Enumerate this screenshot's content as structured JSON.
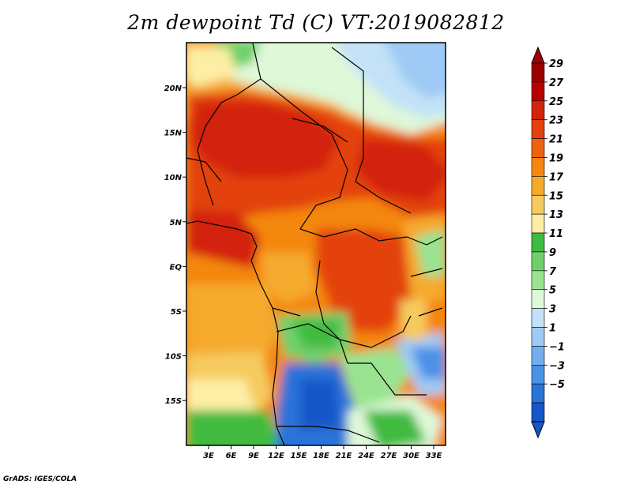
{
  "title": "2m dewpoint Td (C) VT:2019082812",
  "credit": "GrADS: IGES/COLA",
  "map": {
    "lon_range": [
      0,
      35
    ],
    "lat_range": [
      -20,
      24
    ],
    "lon_ticks": [
      "3E",
      "6E",
      "9E",
      "12E",
      "15E",
      "18E",
      "21E",
      "24E",
      "27E",
      "30E",
      "33E"
    ],
    "lat_ticks": [
      "20N",
      "15N",
      "10N",
      "5N",
      "EQ",
      "5S",
      "10S",
      "15S"
    ]
  },
  "colorbar": {
    "labels": [
      "29",
      "27",
      "25",
      "23",
      "21",
      "19",
      "17",
      "15",
      "13",
      "11",
      "9",
      "7",
      "5",
      "3",
      "1",
      "−1",
      "−3",
      "−5"
    ],
    "colors": [
      "#9b0000",
      "#b80000",
      "#d3230b",
      "#e3420d",
      "#ee6310",
      "#f4870f",
      "#f5aa2d",
      "#f5cb5f",
      "#fdeea5",
      "#3fbb3f",
      "#6fd06a",
      "#9ae391",
      "#def8d8",
      "#c3e2f8",
      "#9fcaf5",
      "#75aeef",
      "#4b91e6",
      "#2a73d9",
      "#1556c8"
    ],
    "top_color": "#a00000",
    "bottom_color": "#1556c8"
  }
}
